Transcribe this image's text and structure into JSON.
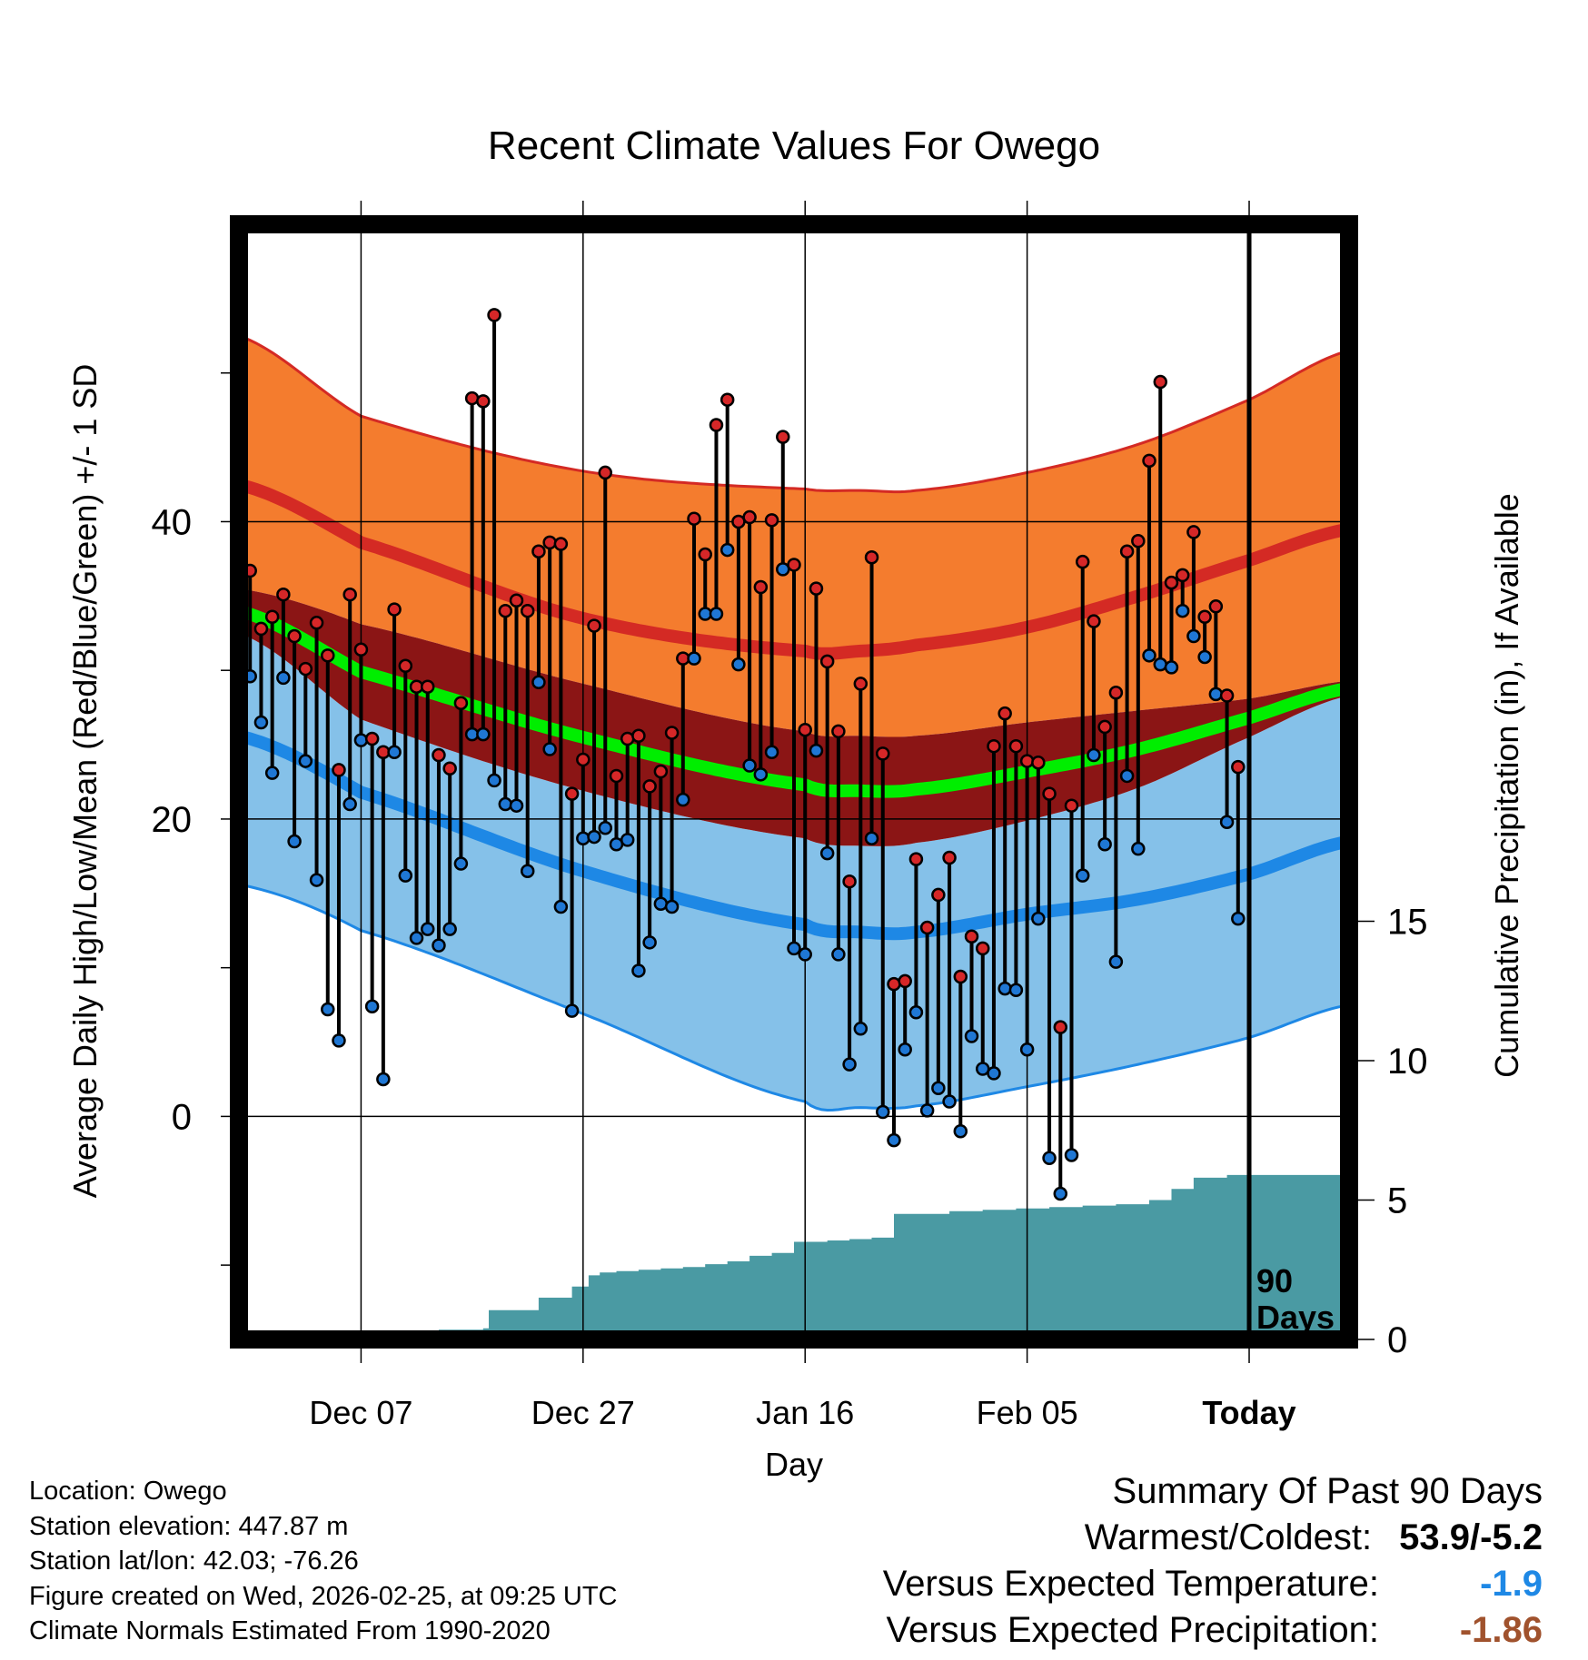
{
  "chart_data": {
    "type": "line",
    "title": "Recent Climate Values For Owego",
    "xlabel": "Day",
    "ylabel_left": "Average Daily High/Low/Mean (Red/Blue/Green) +/- 1 SD",
    "ylabel_right": "Cumulative Precipitation (in), If Available",
    "x_tick_labels": [
      "Dec 07",
      "Dec 27",
      "Jan 16",
      "Feb 05",
      "Today"
    ],
    "x_tick_days": [
      10,
      30,
      50,
      70,
      90
    ],
    "xlim": [
      -1,
      99
    ],
    "ylim_left": [
      -15,
      60
    ],
    "y_ticks_left": [
      0,
      20,
      40
    ],
    "ylim_right": [
      0,
      40
    ],
    "y_ticks_right": [
      0,
      5,
      10,
      15
    ],
    "today_marker": {
      "day": 90,
      "label_line1": "90",
      "label_line2": "Days"
    },
    "normals": {
      "days": [
        -1,
        10,
        30,
        50,
        55,
        60,
        70,
        80,
        90,
        99
      ],
      "high_mean": [
        42.5,
        38.6,
        33.5,
        31.3,
        31.3,
        31.7,
        32.9,
        35.0,
        37.4,
        39.5
      ],
      "high_sd_upper": [
        52.5,
        47.1,
        43.4,
        42.2,
        42.1,
        42.1,
        43.3,
        45.2,
        48.2,
        51.5
      ],
      "low_mean": [
        25.6,
        21.8,
        16.5,
        12.9,
        12.4,
        12.4,
        13.6,
        14.6,
        16.3,
        18.5
      ],
      "low_sd_lower": [
        15.6,
        12.5,
        6.9,
        1.0,
        0.6,
        0.7,
        2.0,
        3.5,
        5.3,
        7.5
      ],
      "mean_norm": [
        34.0,
        29.9,
        25.5,
        22.3,
        21.9,
        22.0,
        23.2,
        24.7,
        26.8,
        28.8
      ],
      "mean_sd": [
        1.5,
        3.2,
        3.6,
        3.6,
        3.7,
        3.6,
        3.3,
        2.6,
        1.3,
        0.5
      ]
    },
    "series": [
      {
        "name": "Daily High",
        "color": "#d62728",
        "values": [
          36.7,
          32.8,
          33.6,
          35.1,
          32.3,
          30.1,
          33.2,
          31.0,
          23.3,
          35.1,
          31.4,
          25.4,
          24.5,
          34.1,
          30.3,
          28.9,
          28.9,
          24.3,
          23.4,
          27.8,
          48.3,
          48.1,
          53.9,
          34.0,
          34.7,
          34.0,
          38.0,
          38.6,
          38.5,
          21.7,
          24.0,
          33.0,
          43.3,
          22.9,
          25.4,
          25.6,
          22.2,
          23.2,
          25.8,
          30.8,
          40.2,
          37.8,
          46.5,
          48.2,
          40.0,
          40.3,
          35.6,
          40.1,
          45.7,
          37.1,
          26.0,
          35.5,
          30.6,
          25.9,
          15.8,
          29.1,
          37.6,
          24.4,
          8.9,
          9.1,
          17.3,
          12.7,
          14.9,
          17.4,
          9.4,
          12.1,
          11.3,
          24.9,
          27.1,
          24.9,
          23.9,
          23.8,
          21.7,
          6.0,
          20.9,
          37.3,
          33.3,
          26.2,
          28.5,
          38.0,
          38.7,
          44.1,
          49.4,
          35.9,
          36.4,
          39.3,
          33.6,
          34.3,
          28.3,
          23.5
        ]
      },
      {
        "name": "Daily Low",
        "color": "#1f77d4",
        "values": [
          29.6,
          26.5,
          23.1,
          29.5,
          18.5,
          23.9,
          15.9,
          7.2,
          5.1,
          21.0,
          25.3,
          7.4,
          2.5,
          24.5,
          16.2,
          12.0,
          12.6,
          11.5,
          12.6,
          17.0,
          25.7,
          25.7,
          22.6,
          21.0,
          20.9,
          16.5,
          29.2,
          24.7,
          14.1,
          7.1,
          18.7,
          18.8,
          19.4,
          18.3,
          18.6,
          9.8,
          11.7,
          14.3,
          14.1,
          21.3,
          30.8,
          33.8,
          33.8,
          38.1,
          30.4,
          23.6,
          23.0,
          24.5,
          36.8,
          11.3,
          10.9,
          24.6,
          17.7,
          10.9,
          3.5,
          5.9,
          18.7,
          0.3,
          -1.6,
          4.5,
          7.0,
          0.4,
          1.9,
          1.0,
          -1.0,
          5.4,
          3.2,
          2.9,
          8.6,
          8.5,
          4.5,
          13.3,
          -2.8,
          -5.2,
          -2.6,
          16.2,
          24.3,
          18.3,
          10.4,
          22.9,
          18.0,
          31.0,
          30.4,
          30.2,
          34.0,
          32.3,
          30.9,
          28.4,
          19.8,
          13.3
        ]
      },
      {
        "name": "Cumulative Precipitation",
        "color": "#4a9aa3",
        "days": [
          9.5,
          11,
          13,
          15,
          17,
          19,
          21,
          21.5,
          23,
          24.5,
          26,
          27.5,
          29,
          30.5,
          31.5,
          33,
          35,
          37,
          39,
          41,
          43,
          45,
          47,
          49,
          50,
          52,
          54,
          56,
          58,
          60,
          63,
          66,
          69,
          72,
          75,
          78,
          81,
          83,
          85,
          86.5,
          88,
          90,
          94,
          99
        ],
        "values": [
          0.0,
          0.1,
          0.15,
          0.25,
          0.35,
          0.35,
          0.4,
          1.05,
          1.05,
          1.05,
          1.5,
          1.5,
          1.9,
          2.3,
          2.4,
          2.45,
          2.5,
          2.55,
          2.6,
          2.7,
          2.8,
          3.0,
          3.1,
          3.5,
          3.5,
          3.55,
          3.6,
          3.65,
          4.5,
          4.5,
          4.6,
          4.65,
          4.7,
          4.75,
          4.8,
          4.85,
          5.0,
          5.4,
          5.8,
          5.8,
          5.9,
          5.9,
          5.9,
          5.9
        ]
      }
    ]
  },
  "footer": {
    "location": "Location: Owego",
    "elevation": "Station elevation: 447.87 m",
    "latlon": "Station lat/lon: 42.03; -76.26",
    "created": "Figure created on Wed, 2026-02-25, at 09:25 UTC",
    "normals": "Climate Normals Estimated From 1990-2020"
  },
  "summary": {
    "heading": "Summary Of Past 90 Days",
    "warmest_label": "Warmest/Coldest:",
    "warmest_value": "53.9/-5.2",
    "temp_label": "Versus Expected Temperature:",
    "temp_value": "-1.9",
    "temp_color": "#1e88e5",
    "precip_label": "Versus Expected Precipitation:",
    "precip_value": "-1.86",
    "precip_color": "#a0522d"
  },
  "colors": {
    "high_band": "#f47c2e",
    "high_line": "#d42a24",
    "low_band": "#85c1e9",
    "low_line": "#1e88e5",
    "mean_band": "#8b1515",
    "mean_line": "#00ee00",
    "precip_fill": "#4a9aa3"
  }
}
